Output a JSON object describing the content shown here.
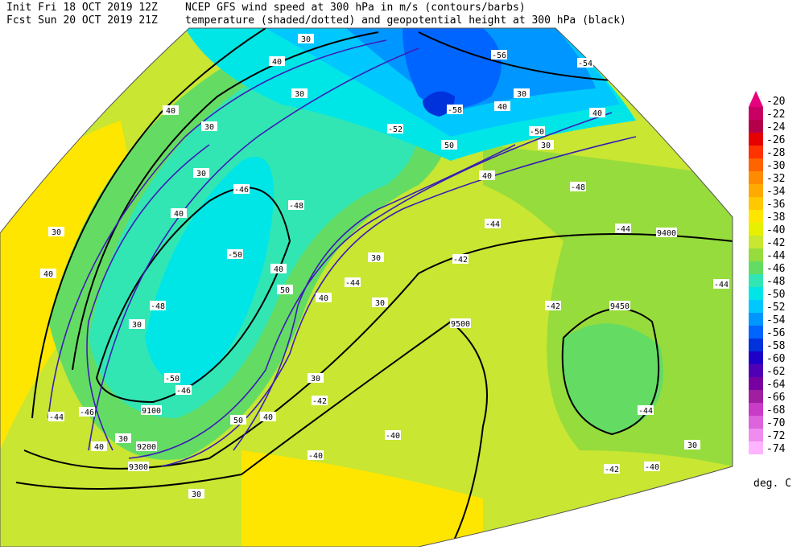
{
  "header": {
    "line1_left": "Init  Fri 18 OCT 2019 12Z",
    "line1_right": "NCEP GFS wind speed at 300 hPa in m/s (contours/barbs)",
    "line2_left": "Fcst Sun 20 OCT 2019 21Z",
    "line2_right": "temperature (shaded/dotted) and geopotential height at 300 hPa (black)"
  },
  "colorbar": {
    "levels": [
      -20,
      -22,
      -24,
      -26,
      -28,
      -30,
      -32,
      -34,
      -36,
      -38,
      -40,
      -42,
      -44,
      -46,
      -48,
      -50,
      -52,
      -54,
      -56,
      -58,
      -60,
      -62,
      -64,
      -66,
      -68,
      -70,
      -72,
      -74
    ],
    "colors": [
      "#e6007e",
      "#c80064",
      "#b4004b",
      "#e60000",
      "#ff3200",
      "#ff6400",
      "#ff8c00",
      "#ffaa00",
      "#ffc800",
      "#ffe600",
      "#e6f000",
      "#c8e632",
      "#96dc3c",
      "#64dc64",
      "#32e6b4",
      "#00e6e6",
      "#00c8ff",
      "#0096ff",
      "#0064ff",
      "#0032dc",
      "#1e00c8",
      "#5000b4",
      "#7800a0",
      "#a01ea0",
      "#c83cc8",
      "#dc64dc",
      "#f08cf0",
      "#ffb4ff"
    ],
    "unit": "deg. C"
  },
  "map_labels": {
    "height": [
      9400,
      9450,
      9500,
      9100,
      9200,
      9300
    ],
    "wind_speed": [
      30,
      40,
      30,
      40,
      30,
      30,
      40,
      30,
      40,
      30,
      30,
      40,
      50,
      40,
      30,
      40,
      50,
      40,
      30,
      30,
      40,
      50,
      40,
      30,
      40,
      30,
      30,
      30
    ],
    "temperature": [
      -54,
      -56,
      -58,
      -52,
      -50,
      -48,
      -44,
      -44,
      -42,
      -44,
      -42,
      -44,
      -42,
      -40,
      -40,
      -40,
      -42,
      -46,
      -50,
      -46,
      -44,
      -48,
      -50,
      -48,
      -46,
      -44
    ]
  }
}
